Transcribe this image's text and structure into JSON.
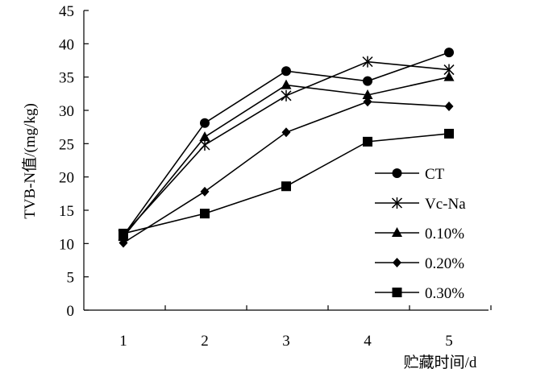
{
  "chart_data": {
    "type": "line",
    "title": "",
    "xlabel": "贮藏时间/d",
    "ylabel": "TVB-N值/(mg/kg)",
    "categories": [
      "1",
      "2",
      "3",
      "4",
      "5"
    ],
    "x": [
      1,
      2,
      3,
      4,
      5
    ],
    "ylim": [
      0,
      45
    ],
    "yticks": [
      "0",
      "5",
      "10",
      "15",
      "20",
      "25",
      "30",
      "35",
      "40",
      "45"
    ],
    "grid": false,
    "legend_position": "right",
    "series": [
      {
        "name": "CT",
        "marker": "circle",
        "values": [
          11.2,
          28.1,
          35.9,
          34.4,
          38.7
        ]
      },
      {
        "name": "Vc-Na",
        "marker": "asterisk",
        "values": [
          11.3,
          24.8,
          32.2,
          37.3,
          36.1
        ]
      },
      {
        "name": "0.10%",
        "marker": "triangle",
        "values": [
          11.0,
          26.0,
          33.8,
          32.3,
          35.0
        ]
      },
      {
        "name": "0.20%",
        "marker": "diamond",
        "values": [
          10.1,
          17.8,
          26.7,
          31.3,
          30.6
        ]
      },
      {
        "name": "0.30%",
        "marker": "square",
        "values": [
          11.5,
          14.5,
          18.6,
          25.3,
          26.5
        ]
      }
    ],
    "colors": {
      "line": "#000000",
      "marker": "#000000"
    }
  }
}
